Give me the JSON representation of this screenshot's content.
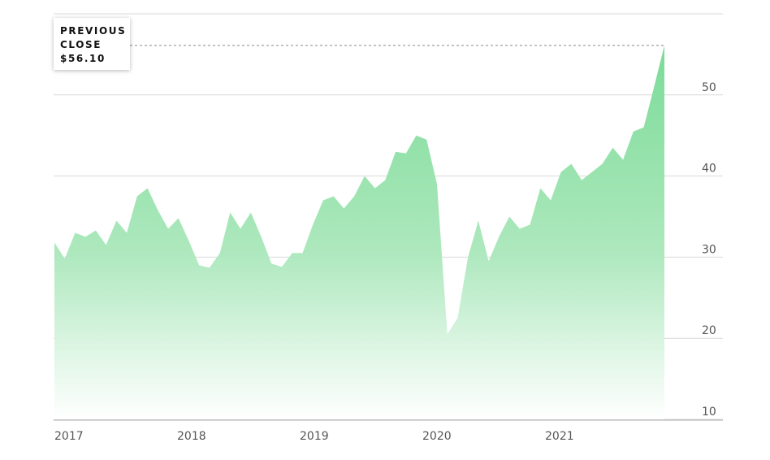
{
  "chart_data": {
    "type": "area",
    "x_ticks": [
      "2017",
      "2018",
      "2019",
      "2020",
      "2021"
    ],
    "y_ticks": [
      10,
      20,
      30,
      40,
      50
    ],
    "ylim": [
      10,
      60
    ],
    "grid": true,
    "colors": {
      "area_top": "#7bdb98",
      "area_bottom": "#ffffff",
      "grid": "#d9d9d9",
      "axis": "#aaaaaa",
      "reference_line": "#888888"
    },
    "previous_close": {
      "label": "PREVIOUS\nCLOSE",
      "value_label": "$56.10",
      "value": 56.1
    },
    "series": [
      {
        "x": [
          "2017-01",
          "2017-02",
          "2017-03",
          "2017-04",
          "2017-05",
          "2017-06",
          "2017-07",
          "2017-08",
          "2017-09",
          "2017-10",
          "2017-11",
          "2017-12",
          "2018-01",
          "2018-02",
          "2018-03",
          "2018-04",
          "2018-05",
          "2018-06",
          "2018-07",
          "2018-08",
          "2018-09",
          "2018-10",
          "2018-11",
          "2018-12",
          "2019-01",
          "2019-02",
          "2019-03",
          "2019-04",
          "2019-05",
          "2019-06",
          "2019-07",
          "2019-08",
          "2019-09",
          "2019-10",
          "2019-11",
          "2019-12",
          "2020-01",
          "2020-02",
          "2020-03",
          "2020-04",
          "2020-05",
          "2020-06",
          "2020-07",
          "2020-08",
          "2020-09",
          "2020-10",
          "2020-11",
          "2020-12",
          "2021-01",
          "2021-02",
          "2021-03",
          "2021-04",
          "2021-05",
          "2021-06",
          "2021-07",
          "2021-08",
          "2021-09",
          "2021-10",
          "2021-11",
          "2021-12"
        ],
        "values": [
          31.8,
          29.8,
          33.0,
          32.5,
          33.3,
          31.5,
          34.5,
          33.0,
          37.5,
          38.5,
          35.8,
          33.5,
          34.8,
          32.0,
          29.0,
          28.7,
          30.5,
          35.5,
          33.5,
          35.5,
          32.5,
          29.2,
          28.8,
          30.5,
          30.5,
          34.0,
          37.0,
          37.5,
          36.0,
          37.5,
          40.0,
          38.5,
          39.5,
          43.0,
          42.8,
          45.0,
          44.5,
          39.0,
          20.5,
          22.5,
          30.0,
          34.5,
          29.5,
          32.5,
          35.0,
          33.5,
          34.0,
          38.5,
          37.0,
          40.5,
          41.5,
          39.5,
          40.5,
          41.5,
          43.5,
          42.0,
          45.5,
          46.0,
          51.0,
          56.1
        ]
      }
    ]
  }
}
